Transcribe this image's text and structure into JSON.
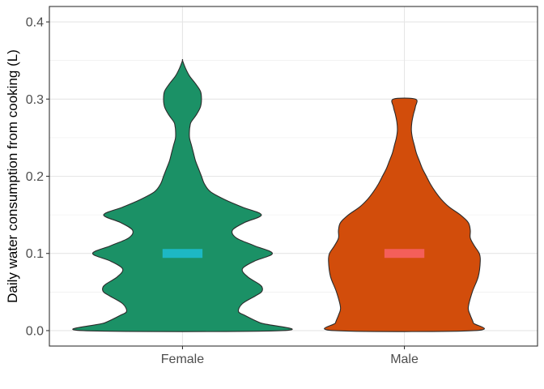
{
  "chart_data": {
    "type": "violin",
    "title": "",
    "xlabel": "",
    "ylabel": "Daily water consumption from cooking (L)",
    "categories": [
      "Female",
      "Male"
    ],
    "ylim": [
      -0.02,
      0.42
    ],
    "yticks": [
      0.0,
      0.1,
      0.2,
      0.3,
      0.4
    ],
    "ytick_labels": [
      "0.0",
      "0.1",
      "0.2",
      "0.3",
      "0.4"
    ],
    "grid": true,
    "legend": "none",
    "series": [
      {
        "category": "Female",
        "fill": "#1b9166",
        "marker_color": "#1db8c4",
        "median": 0.1,
        "max": 0.35,
        "density_profile": [
          [
            0.0,
            1.0
          ],
          [
            0.01,
            0.78
          ],
          [
            0.02,
            0.62
          ],
          [
            0.025,
            0.56
          ],
          [
            0.035,
            0.6
          ],
          [
            0.045,
            0.73
          ],
          [
            0.05,
            0.79
          ],
          [
            0.055,
            0.8
          ],
          [
            0.06,
            0.77
          ],
          [
            0.07,
            0.65
          ],
          [
            0.08,
            0.6
          ],
          [
            0.09,
            0.72
          ],
          [
            0.1,
            0.9
          ],
          [
            0.11,
            0.72
          ],
          [
            0.12,
            0.54
          ],
          [
            0.13,
            0.5
          ],
          [
            0.14,
            0.62
          ],
          [
            0.15,
            0.79
          ],
          [
            0.16,
            0.6
          ],
          [
            0.17,
            0.42
          ],
          [
            0.18,
            0.28
          ],
          [
            0.19,
            0.22
          ],
          [
            0.2,
            0.19
          ],
          [
            0.21,
            0.16
          ],
          [
            0.22,
            0.13
          ],
          [
            0.23,
            0.11
          ],
          [
            0.24,
            0.09
          ],
          [
            0.25,
            0.07
          ],
          [
            0.26,
            0.07
          ],
          [
            0.265,
            0.075
          ],
          [
            0.27,
            0.085
          ],
          [
            0.28,
            0.14
          ],
          [
            0.29,
            0.18
          ],
          [
            0.3,
            0.19
          ],
          [
            0.31,
            0.18
          ],
          [
            0.32,
            0.13
          ],
          [
            0.33,
            0.07
          ],
          [
            0.34,
            0.03
          ],
          [
            0.35,
            0.0
          ]
        ]
      },
      {
        "category": "Male",
        "fill": "#d24d0b",
        "marker_color": "#f45f5a",
        "median": 0.1,
        "max": 0.3,
        "density_profile": [
          [
            0.0,
            0.7
          ],
          [
            0.01,
            0.69
          ],
          [
            0.02,
            0.66
          ],
          [
            0.03,
            0.64
          ],
          [
            0.05,
            0.68
          ],
          [
            0.07,
            0.74
          ],
          [
            0.09,
            0.76
          ],
          [
            0.1,
            0.75
          ],
          [
            0.11,
            0.7
          ],
          [
            0.12,
            0.66
          ],
          [
            0.13,
            0.66
          ],
          [
            0.14,
            0.64
          ],
          [
            0.15,
            0.56
          ],
          [
            0.16,
            0.45
          ],
          [
            0.17,
            0.37
          ],
          [
            0.18,
            0.31
          ],
          [
            0.19,
            0.26
          ],
          [
            0.2,
            0.22
          ],
          [
            0.21,
            0.18
          ],
          [
            0.22,
            0.15
          ],
          [
            0.23,
            0.12
          ],
          [
            0.24,
            0.1
          ],
          [
            0.25,
            0.08
          ],
          [
            0.26,
            0.07
          ],
          [
            0.27,
            0.075
          ],
          [
            0.28,
            0.09
          ],
          [
            0.29,
            0.11
          ],
          [
            0.3,
            0.11
          ]
        ]
      }
    ]
  }
}
